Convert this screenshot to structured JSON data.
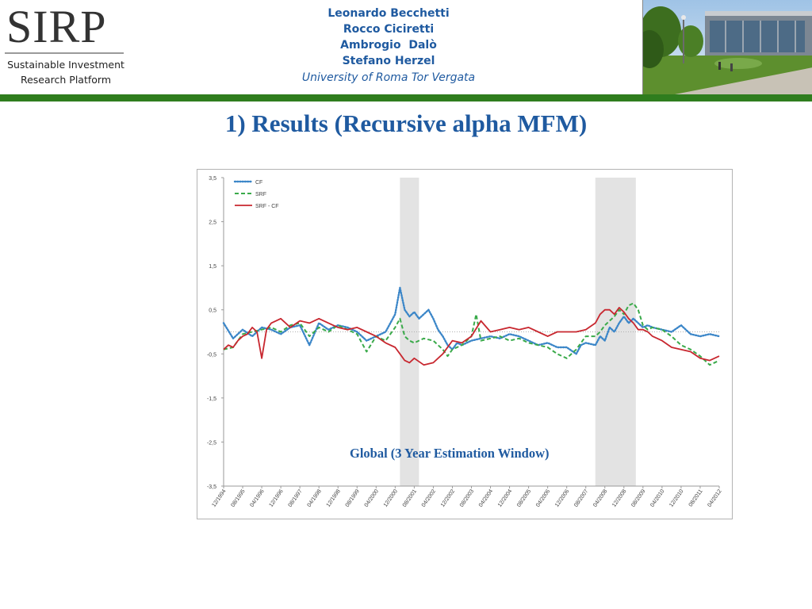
{
  "header": {
    "logo": {
      "word": "SIRP",
      "tagline_lines": [
        "Sustainable Investment",
        "Research Platform"
      ]
    },
    "authors": [
      "Leonardo Becchetti",
      "Rocco Ciciretti",
      "Ambrogio  Dalò",
      "Stefano Herzel"
    ],
    "institution": "University of Roma Tor Vergata"
  },
  "slide": {
    "title": "1) Results (Recursive alpha MFM)"
  },
  "chart_data": {
    "type": "line",
    "title": "",
    "caption": "Global (3 Year Estimation Window)",
    "xlabel": "",
    "ylabel": "",
    "ylim": [
      -3.5,
      3.5
    ],
    "y_ticks": [
      3.5,
      2.5,
      1.5,
      0.5,
      -0.5,
      -1.5,
      -2.5,
      -3.5
    ],
    "y_tick_labels": [
      "3,5",
      "2,5",
      "1,5",
      "0,5",
      "-0,5",
      "-1,5",
      "-2,5",
      "-3,5"
    ],
    "x_tick_labels": [
      "12/1994",
      "08/1995",
      "04/1996",
      "12/1996",
      "08/1997",
      "04/1998",
      "12/1998",
      "08/1999",
      "04/2000",
      "12/2000",
      "08/2001",
      "04/2002",
      "12/2002",
      "08/2003",
      "04/2004",
      "12/2004",
      "08/2005",
      "04/2006",
      "12/2006",
      "08/2007",
      "04/2008",
      "12/2008",
      "08/2009",
      "04/2010",
      "12/2010",
      "08/2011",
      "04/2012"
    ],
    "x_ticks": [
      0,
      8,
      16,
      24,
      32,
      40,
      48,
      56,
      64,
      72,
      80,
      88,
      96,
      104,
      112,
      120,
      128,
      136,
      144,
      152,
      160,
      168,
      176,
      184,
      192,
      200,
      208
    ],
    "x_range": [
      0,
      208
    ],
    "x_unit_note": "months since 12/1994",
    "recession_bands": [
      [
        74,
        82
      ],
      [
        156,
        173
      ]
    ],
    "reference_line": 0,
    "grid": false,
    "legend_position": "top-left",
    "series": [
      {
        "name": "CF",
        "style": "dotted",
        "color": "#3b86c8",
        "x": [
          0,
          4,
          8,
          12,
          16,
          20,
          24,
          28,
          32,
          36,
          40,
          44,
          48,
          52,
          56,
          60,
          64,
          68,
          70,
          72,
          74,
          76,
          78,
          80,
          82,
          84,
          86,
          88,
          90,
          92,
          94,
          96,
          98,
          100,
          104,
          108,
          112,
          116,
          120,
          124,
          128,
          132,
          136,
          140,
          144,
          148,
          150,
          152,
          156,
          158,
          160,
          162,
          164,
          166,
          168,
          170,
          172,
          174,
          176,
          178,
          180,
          184,
          188,
          192,
          196,
          200,
          204,
          208
        ],
        "y": [
          0.2,
          -0.15,
          0.05,
          -0.1,
          0.1,
          0.05,
          -0.05,
          0.1,
          0.15,
          -0.3,
          0.2,
          0.05,
          0.15,
          0.1,
          0.0,
          -0.2,
          -0.1,
          0.0,
          0.2,
          0.4,
          1.0,
          0.5,
          0.35,
          0.45,
          0.3,
          0.4,
          0.5,
          0.3,
          0.05,
          -0.1,
          -0.3,
          -0.4,
          -0.25,
          -0.3,
          -0.2,
          -0.15,
          -0.1,
          -0.15,
          -0.05,
          -0.1,
          -0.2,
          -0.3,
          -0.25,
          -0.35,
          -0.35,
          -0.5,
          -0.3,
          -0.25,
          -0.3,
          -0.1,
          -0.2,
          0.1,
          0.0,
          0.2,
          0.35,
          0.2,
          0.3,
          0.2,
          0.1,
          0.15,
          0.1,
          0.05,
          0.0,
          0.15,
          -0.05,
          -0.1,
          -0.05,
          -0.1
        ]
      },
      {
        "name": "SRF",
        "style": "dashed",
        "color": "#3aaa4a",
        "x": [
          0,
          4,
          8,
          12,
          16,
          20,
          24,
          28,
          32,
          36,
          40,
          44,
          48,
          52,
          56,
          60,
          64,
          68,
          72,
          74,
          76,
          78,
          80,
          84,
          88,
          92,
          94,
          96,
          100,
          104,
          106,
          108,
          112,
          116,
          120,
          124,
          128,
          132,
          136,
          140,
          144,
          148,
          152,
          156,
          158,
          160,
          162,
          164,
          166,
          168,
          170,
          172,
          174,
          176,
          178,
          180,
          184,
          188,
          192,
          196,
          200,
          204,
          208
        ],
        "y": [
          -0.4,
          -0.35,
          -0.05,
          0.0,
          0.05,
          0.1,
          0.0,
          0.15,
          0.2,
          -0.1,
          0.1,
          0.0,
          0.15,
          0.05,
          -0.05,
          -0.45,
          -0.1,
          -0.2,
          0.1,
          0.3,
          -0.1,
          -0.2,
          -0.25,
          -0.15,
          -0.2,
          -0.4,
          -0.55,
          -0.4,
          -0.3,
          -0.1,
          0.4,
          -0.2,
          -0.15,
          -0.1,
          -0.2,
          -0.15,
          -0.25,
          -0.3,
          -0.35,
          -0.5,
          -0.6,
          -0.4,
          -0.1,
          -0.1,
          0.0,
          0.15,
          0.25,
          0.35,
          0.5,
          0.4,
          0.6,
          0.65,
          0.5,
          0.15,
          0.05,
          0.1,
          0.05,
          -0.1,
          -0.3,
          -0.4,
          -0.55,
          -0.75,
          -0.65
        ]
      },
      {
        "name": "SRF - CF",
        "style": "solid",
        "color": "#c8272f",
        "x": [
          0,
          2,
          4,
          6,
          8,
          10,
          12,
          14,
          16,
          18,
          20,
          24,
          28,
          32,
          36,
          40,
          44,
          48,
          52,
          56,
          60,
          64,
          68,
          72,
          74,
          76,
          78,
          80,
          84,
          88,
          92,
          96,
          100,
          104,
          108,
          112,
          116,
          120,
          124,
          128,
          132,
          136,
          140,
          144,
          148,
          152,
          156,
          158,
          160,
          162,
          164,
          166,
          168,
          170,
          172,
          174,
          176,
          178,
          180,
          184,
          188,
          192,
          196,
          200,
          204,
          208
        ],
        "y": [
          -0.4,
          -0.3,
          -0.35,
          -0.2,
          -0.1,
          -0.05,
          0.1,
          0.0,
          -0.6,
          0.05,
          0.2,
          0.3,
          0.1,
          0.25,
          0.2,
          0.3,
          0.2,
          0.1,
          0.05,
          0.1,
          0.0,
          -0.1,
          -0.25,
          -0.35,
          -0.5,
          -0.65,
          -0.7,
          -0.6,
          -0.75,
          -0.7,
          -0.5,
          -0.2,
          -0.25,
          -0.1,
          0.25,
          0.0,
          0.05,
          0.1,
          0.05,
          0.1,
          0.0,
          -0.1,
          0.0,
          0.0,
          0.0,
          0.05,
          0.2,
          0.4,
          0.5,
          0.5,
          0.4,
          0.55,
          0.45,
          0.3,
          0.2,
          0.05,
          0.05,
          0.0,
          -0.1,
          -0.2,
          -0.35,
          -0.4,
          -0.45,
          -0.6,
          -0.65,
          -0.55
        ]
      }
    ]
  }
}
